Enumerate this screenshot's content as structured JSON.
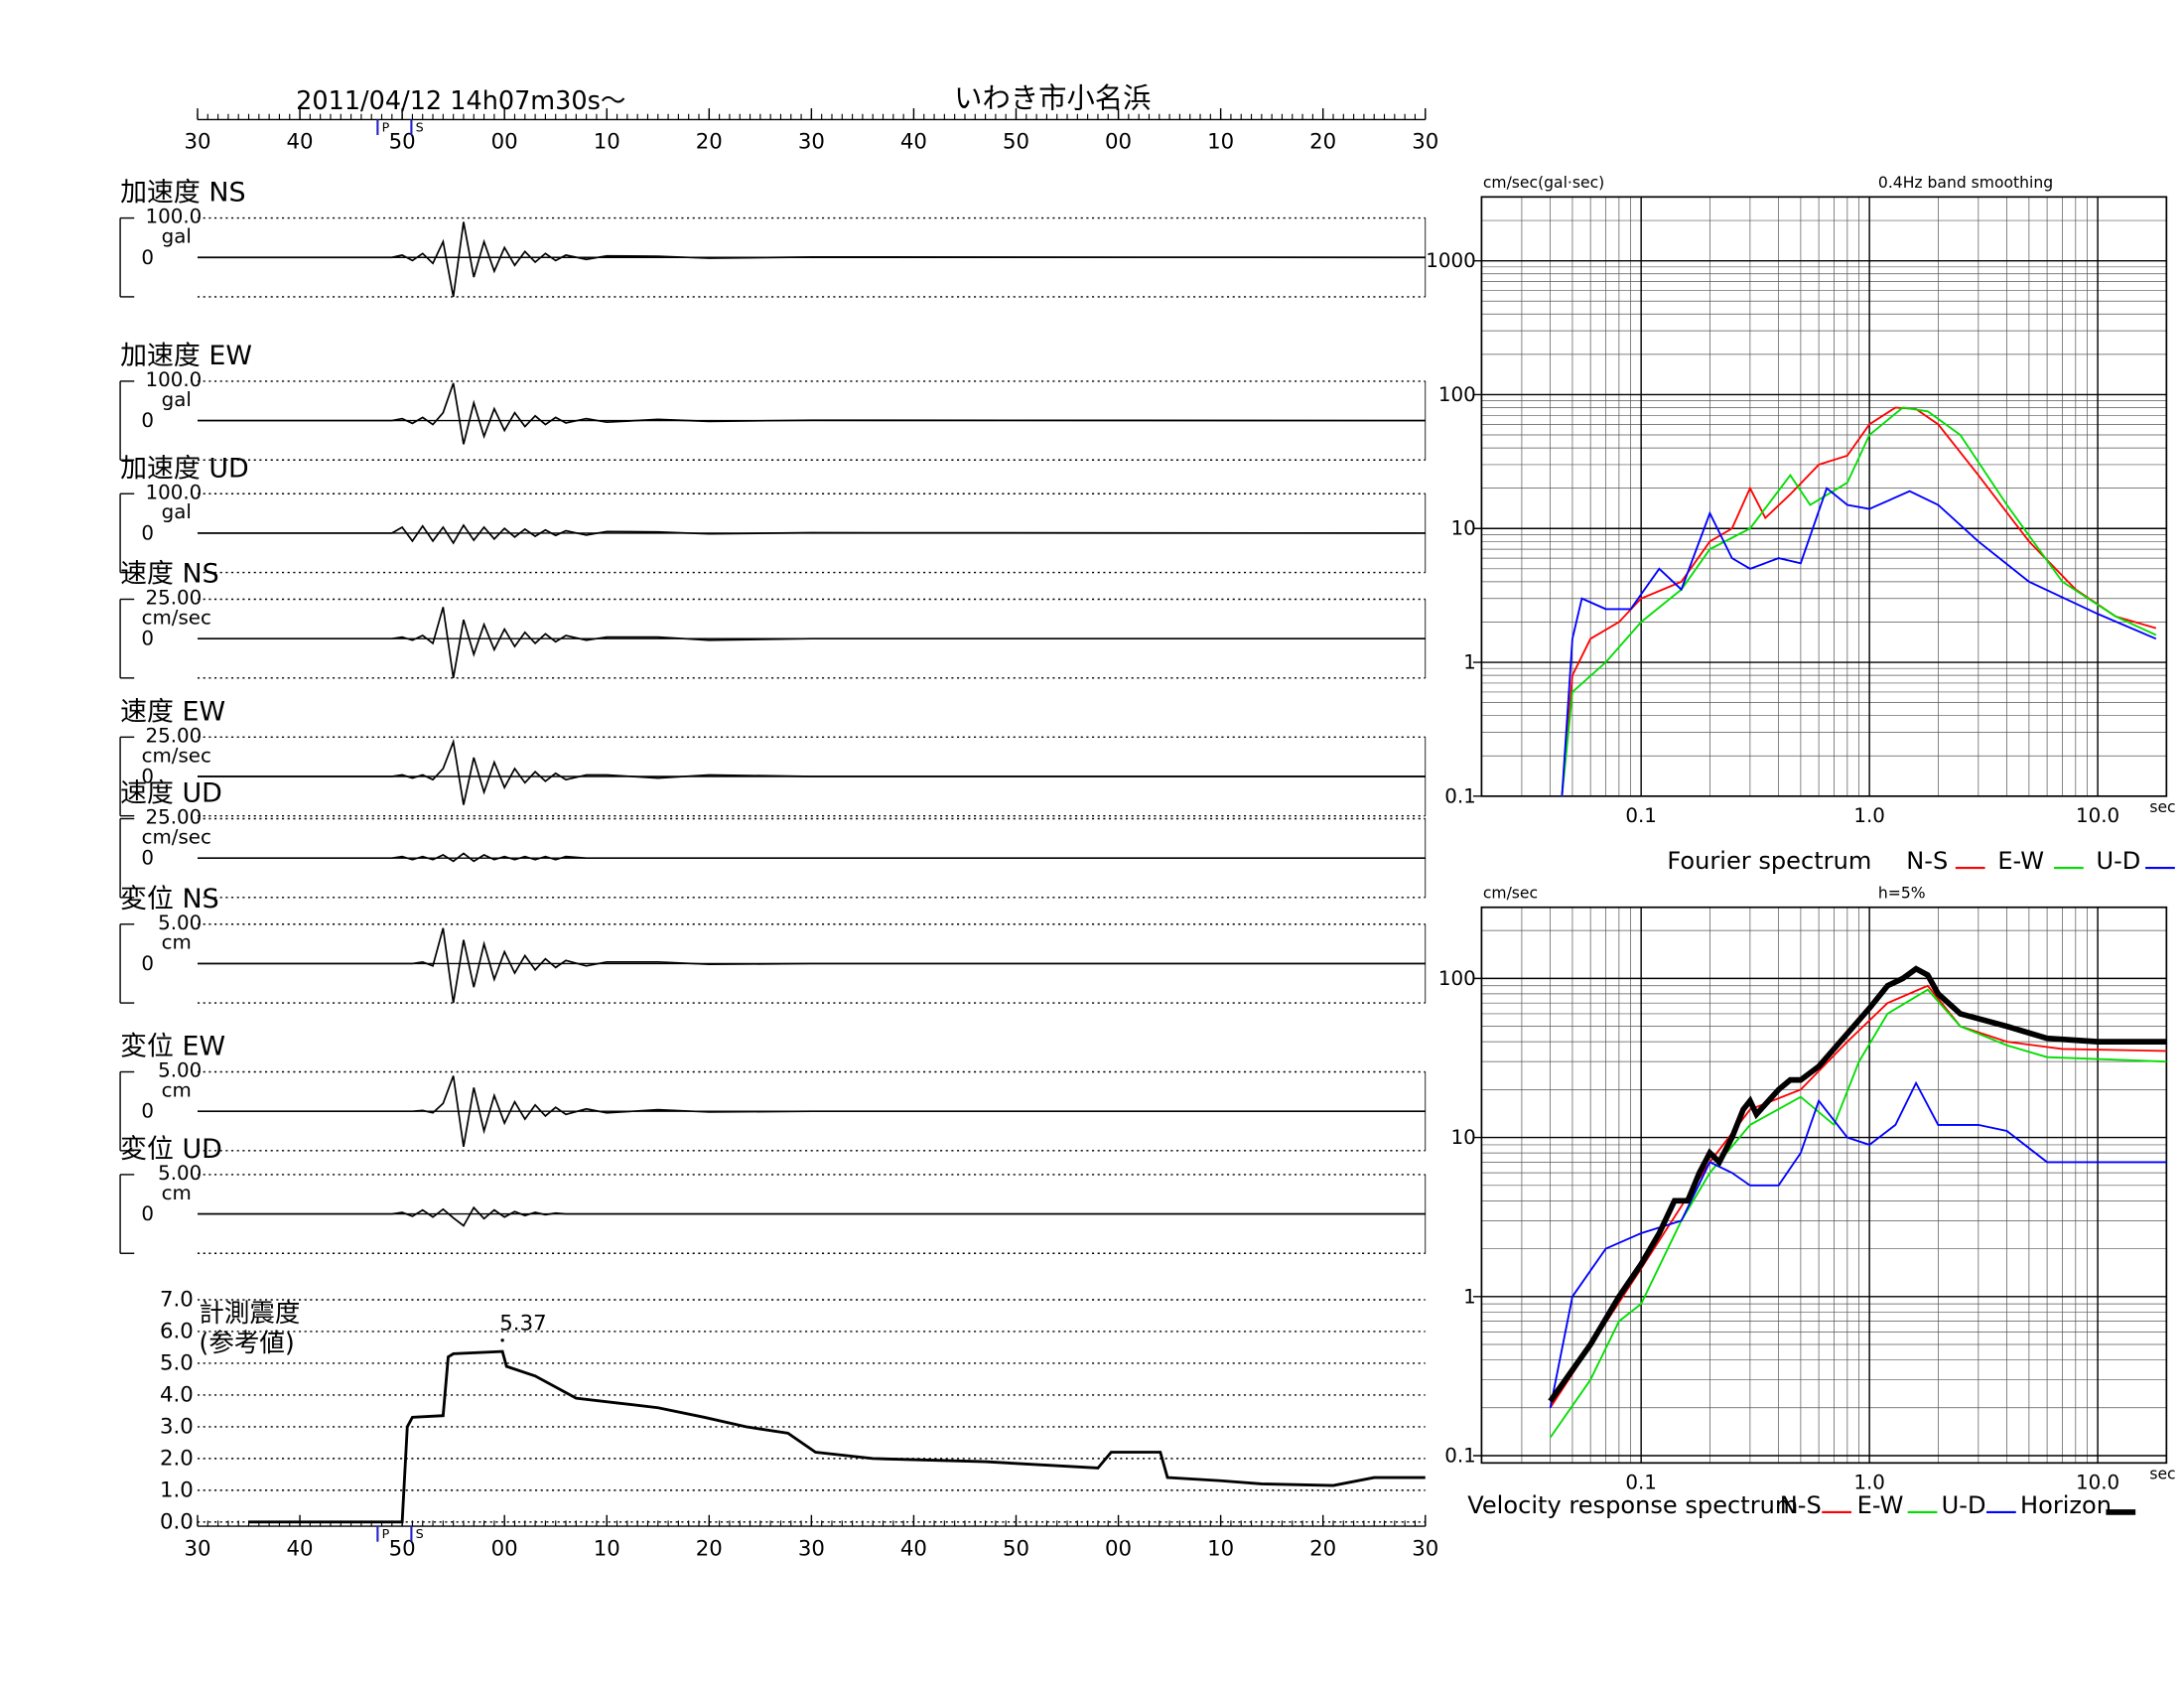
{
  "header": {
    "date": "2011/04/12  14h07m30s〜",
    "station": "いわき市小名浜"
  },
  "chart_data": [
    {
      "type": "waveform",
      "xlim": [
        0,
        120
      ],
      "xticks": [
        {
          "value": 0,
          "label": "30"
        },
        {
          "value": 10,
          "label": "40"
        },
        {
          "value": 20,
          "label": "50"
        },
        {
          "value": 30,
          "label": "00"
        },
        {
          "value": 40,
          "label": "10"
        },
        {
          "value": 50,
          "label": "20"
        },
        {
          "value": 60,
          "label": "30"
        },
        {
          "value": 70,
          "label": "40"
        },
        {
          "value": 80,
          "label": "50"
        },
        {
          "value": 90,
          "label": "00"
        },
        {
          "value": 100,
          "label": "10"
        },
        {
          "value": 110,
          "label": "20"
        },
        {
          "value": 120,
          "label": "30"
        }
      ],
      "phases": [
        {
          "label": "P",
          "time": 17.6
        },
        {
          "label": "S",
          "time": 20.9
        }
      ],
      "x": [
        0,
        19,
        20,
        21,
        22,
        23,
        24,
        25,
        26,
        27,
        28,
        29,
        30,
        31,
        32,
        33,
        34,
        35,
        36,
        38,
        40,
        45,
        50,
        60,
        120
      ],
      "panels": [
        {
          "label": "加速度 NS",
          "unit": "gal",
          "ylim": [
            -100,
            100
          ],
          "yticks": [
            0,
            {
              "value": 100,
              "label": "100.0"
            }
          ],
          "values": [
            0,
            0,
            6,
            -8,
            10,
            -15,
            40,
            -100,
            90,
            -50,
            40,
            -35,
            25,
            -20,
            15,
            -12,
            10,
            -8,
            6,
            -5,
            4,
            3,
            -2,
            1,
            0
          ]
        },
        {
          "label": "加速度 EW",
          "unit": "gal",
          "ylim": [
            -100,
            100
          ],
          "yticks": [
            0,
            {
              "value": 100,
              "label": "100.0"
            }
          ],
          "values": [
            0,
            0,
            5,
            -7,
            8,
            -10,
            20,
            95,
            -60,
            45,
            -40,
            30,
            -25,
            20,
            -15,
            12,
            -10,
            8,
            -6,
            5,
            -4,
            3,
            -2,
            1,
            0
          ]
        },
        {
          "label": "加速度 UD",
          "unit": "gal",
          "ylim": [
            -100,
            100
          ],
          "yticks": [
            0,
            {
              "value": 100,
              "label": "100.0"
            }
          ],
          "values": [
            0,
            0,
            15,
            -20,
            18,
            -20,
            15,
            -25,
            20,
            -18,
            15,
            -15,
            12,
            -10,
            10,
            -8,
            8,
            -6,
            6,
            -5,
            4,
            3,
            -2,
            1,
            0
          ]
        },
        {
          "label": "速度 NS",
          "unit": "cm/sec",
          "ylim": [
            -25,
            25
          ],
          "yticks": [
            0,
            {
              "value": 25,
              "label": "25.00"
            }
          ],
          "values": [
            0,
            0,
            1,
            -1,
            2,
            -3,
            20,
            -25,
            12,
            -10,
            9,
            -7,
            6,
            -5,
            4,
            -3,
            3,
            -2,
            2,
            -1,
            1,
            1,
            -1,
            0,
            0
          ]
        },
        {
          "label": "速度 EW",
          "unit": "cm/sec",
          "ylim": [
            -25,
            25
          ],
          "yticks": [
            0,
            {
              "value": 25,
              "label": "25.00"
            }
          ],
          "values": [
            0,
            0,
            1,
            -1,
            1,
            -2,
            5,
            22,
            -18,
            12,
            -10,
            9,
            -7,
            5,
            -4,
            3,
            -3,
            2,
            -2,
            1,
            1,
            -1,
            1,
            0,
            0
          ]
        },
        {
          "label": "速度 UD",
          "unit": "cm/sec",
          "ylim": [
            -25,
            25
          ],
          "yticks": [
            0,
            {
              "value": 25,
              "label": "25.00"
            }
          ],
          "values": [
            0,
            0,
            1,
            -1,
            1,
            -1,
            2,
            -2,
            3,
            -2,
            2,
            -1,
            1,
            -1,
            1,
            -1,
            1,
            -1,
            1,
            0,
            0,
            0,
            0,
            0,
            0
          ]
        },
        {
          "label": "変位 NS",
          "unit": "cm",
          "ylim": [
            -5,
            5
          ],
          "yticks": [
            0,
            {
              "value": 5,
              "label": "5.00"
            }
          ],
          "values": [
            0,
            0,
            0,
            0,
            0.2,
            -0.3,
            4.5,
            -5,
            3,
            -3,
            2.5,
            -2,
            1.5,
            -1.2,
            1,
            -0.8,
            0.6,
            -0.5,
            0.4,
            -0.3,
            0.2,
            0.2,
            -0.1,
            0,
            0
          ]
        },
        {
          "label": "変位 EW",
          "unit": "cm",
          "ylim": [
            -5,
            5
          ],
          "yticks": [
            0,
            {
              "value": 5,
              "label": "5.00"
            }
          ],
          "values": [
            0,
            0,
            0,
            0,
            0.1,
            -0.2,
            1,
            4.5,
            -4.5,
            3,
            -2.5,
            2,
            -1.5,
            1.2,
            -1,
            0.8,
            -0.6,
            0.5,
            -0.4,
            0.3,
            -0.2,
            0.2,
            -0.1,
            0,
            0
          ]
        },
        {
          "label": "変位 UD",
          "unit": "cm",
          "ylim": [
            -5,
            5
          ],
          "yticks": [
            0,
            {
              "value": 5,
              "label": "5.00"
            }
          ],
          "values": [
            0,
            0,
            0.2,
            -0.3,
            0.5,
            -0.4,
            0.6,
            -0.5,
            -1.5,
            0.8,
            -0.6,
            0.5,
            -0.4,
            0.3,
            -0.2,
            0.2,
            -0.1,
            0.1,
            0,
            0,
            0,
            0,
            0,
            0,
            0
          ]
        }
      ]
    },
    {
      "type": "line",
      "title": [
        "計測震度",
        "(参考値)"
      ],
      "xlim": [
        0,
        120
      ],
      "xticks": [
        {
          "value": 0,
          "label": "30"
        },
        {
          "value": 10,
          "label": "40"
        },
        {
          "value": 20,
          "label": "50"
        },
        {
          "value": 30,
          "label": "00"
        },
        {
          "value": 40,
          "label": "10"
        },
        {
          "value": 50,
          "label": "20"
        },
        {
          "value": 60,
          "label": "30"
        },
        {
          "value": 70,
          "label": "40"
        },
        {
          "value": 80,
          "label": "50"
        },
        {
          "value": 90,
          "label": "00"
        },
        {
          "value": 100,
          "label": "10"
        },
        {
          "value": 110,
          "label": "20"
        },
        {
          "value": 120,
          "label": "30"
        }
      ],
      "phases": [
        {
          "label": "P",
          "time": 17.6
        },
        {
          "label": "S",
          "time": 20.9
        }
      ],
      "ylim": [
        0,
        7
      ],
      "yticks": [
        {
          "value": 0,
          "label": "0.0"
        },
        {
          "value": 1,
          "label": "1.0"
        },
        {
          "value": 2,
          "label": "2.0"
        },
        {
          "value": 3,
          "label": "3.0"
        },
        {
          "value": 4,
          "label": "4.0"
        },
        {
          "value": 5,
          "label": "5.0"
        },
        {
          "value": 6,
          "label": "6.0"
        },
        {
          "value": 7,
          "label": "7.0"
        }
      ],
      "grid": true,
      "series": [
        {
          "color": "#000000",
          "x": [
            5,
            20,
            20.5,
            21,
            24,
            24.5,
            25,
            29.8,
            30.2,
            33,
            37,
            41,
            45,
            49.5,
            53.6,
            57.7,
            60.4,
            66,
            77,
            88,
            89.3,
            94.1,
            94.8,
            100,
            104,
            111,
            115,
            120
          ],
          "values": [
            0,
            0,
            3.0,
            3.3,
            3.35,
            5.2,
            5.3,
            5.37,
            4.9,
            4.6,
            3.9,
            3.75,
            3.6,
            3.3,
            3.0,
            2.8,
            2.2,
            2.0,
            1.9,
            1.7,
            2.2,
            2.2,
            1.4,
            1.3,
            1.2,
            1.15,
            1.4,
            1.4
          ]
        }
      ],
      "annotations": [
        {
          "text": "5.37",
          "x": 29.8,
          "y": 5.37
        }
      ]
    },
    {
      "type": "line",
      "log_x": true,
      "log_y": true,
      "ylabel": "cm/sec(gal·sec)",
      "subtitle": "0.4Hz band smoothing",
      "xlabel": "sec",
      "legend_title": "Fourier spectrum",
      "xlim": [
        0.02,
        20
      ],
      "xticks": [
        0.1,
        {
          "value": 1,
          "label": "1.0"
        },
        {
          "value": 10,
          "label": "10.0"
        }
      ],
      "ylim": [
        0.1,
        3000
      ],
      "yticks": [
        0.1,
        1,
        10,
        100,
        1000
      ],
      "grid": true,
      "series": [
        {
          "name": "N-S",
          "color": "#ff0000",
          "x": [
            0.045,
            0.05,
            0.06,
            0.08,
            0.1,
            0.15,
            0.2,
            0.25,
            0.3,
            0.35,
            0.45,
            0.6,
            0.8,
            1.0,
            1.3,
            1.6,
            2,
            3,
            5,
            8,
            12,
            18
          ],
          "values": [
            0.1,
            0.8,
            1.5,
            2,
            3,
            4,
            8,
            10,
            20,
            12,
            18,
            30,
            35,
            60,
            80,
            78,
            60,
            25,
            8,
            3.5,
            2.2,
            1.8
          ]
        },
        {
          "name": "E-W",
          "color": "#00dd00",
          "x": [
            0.045,
            0.05,
            0.07,
            0.1,
            0.15,
            0.2,
            0.3,
            0.45,
            0.55,
            0.8,
            1.0,
            1.4,
            1.8,
            2.5,
            4,
            7,
            12,
            18
          ],
          "values": [
            0.1,
            0.6,
            1,
            2,
            3.5,
            7,
            10,
            25,
            15,
            22,
            50,
            80,
            75,
            50,
            15,
            4,
            2.2,
            1.6
          ]
        },
        {
          "name": "U-D",
          "color": "#0000ff",
          "x": [
            0.045,
            0.05,
            0.055,
            0.07,
            0.09,
            0.12,
            0.15,
            0.2,
            0.25,
            0.3,
            0.4,
            0.5,
            0.65,
            0.8,
            1.0,
            1.5,
            2,
            3,
            5,
            10,
            18
          ],
          "values": [
            0.1,
            1.5,
            3,
            2.5,
            2.5,
            5,
            3.5,
            13,
            6,
            5,
            6,
            5.5,
            20,
            15,
            14,
            19,
            15,
            8,
            4,
            2.3,
            1.5
          ]
        }
      ]
    },
    {
      "type": "line",
      "log_x": true,
      "log_y": true,
      "ylabel": "cm/sec",
      "subtitle": "h=5%",
      "xlabel": "sec",
      "legend_title": "Velocity response spectrum",
      "xlim": [
        0.02,
        20
      ],
      "xticks": [
        0.1,
        {
          "value": 1,
          "label": "1.0"
        },
        {
          "value": 10,
          "label": "10.0"
        }
      ],
      "ylim": [
        0.09,
        280
      ],
      "yticks": [
        0.1,
        1,
        10,
        100
      ],
      "grid": true,
      "series": [
        {
          "name": "N-S",
          "color": "#ff0000",
          "x": [
            0.04,
            0.1,
            0.2,
            0.3,
            0.5,
            0.8,
            1.2,
            1.8,
            2.5,
            4,
            7,
            20
          ],
          "values": [
            0.2,
            1.5,
            7,
            15,
            20,
            40,
            70,
            90,
            50,
            40,
            36,
            35
          ]
        },
        {
          "name": "E-W",
          "color": "#00dd00",
          "x": [
            0.04,
            0.06,
            0.08,
            0.1,
            0.15,
            0.2,
            0.3,
            0.5,
            0.7,
            0.9,
            1.2,
            1.8,
            2.5,
            4,
            6,
            20
          ],
          "values": [
            0.13,
            0.3,
            0.7,
            0.9,
            3,
            6,
            12,
            18,
            12,
            30,
            60,
            85,
            50,
            38,
            32,
            30
          ]
        },
        {
          "name": "U-D",
          "color": "#0000ff",
          "x": [
            0.04,
            0.05,
            0.07,
            0.1,
            0.15,
            0.2,
            0.25,
            0.3,
            0.4,
            0.5,
            0.6,
            0.8,
            1.0,
            1.3,
            1.6,
            2,
            3,
            4,
            6,
            10,
            20
          ],
          "values": [
            0.2,
            1,
            2,
            2.5,
            3,
            7,
            6,
            5,
            5,
            8,
            17,
            10,
            9,
            12,
            22,
            12,
            12,
            11,
            7,
            7,
            7
          ]
        },
        {
          "name": "Horizon",
          "color": "#000000",
          "x": [
            0.04,
            0.06,
            0.08,
            0.1,
            0.12,
            0.14,
            0.16,
            0.18,
            0.2,
            0.22,
            0.25,
            0.28,
            0.3,
            0.32,
            0.4,
            0.45,
            0.5,
            0.6,
            0.8,
            1.0,
            1.2,
            1.4,
            1.6,
            1.8,
            2,
            2.5,
            4,
            6,
            10,
            20
          ],
          "values": [
            0.22,
            0.5,
            1,
            1.6,
            2.5,
            4,
            4,
            6,
            8,
            7,
            10,
            15,
            17,
            14,
            20,
            23,
            23,
            28,
            45,
            65,
            90,
            100,
            115,
            105,
            80,
            60,
            50,
            42,
            40,
            40
          ]
        }
      ]
    }
  ]
}
